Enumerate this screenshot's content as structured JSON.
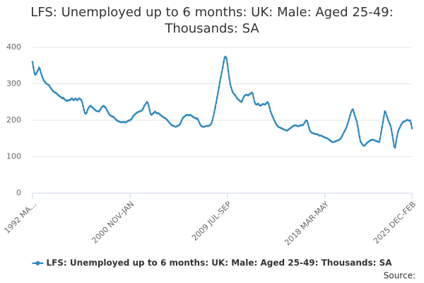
{
  "chart_data": {
    "type": "line",
    "title": "LFS: Unemployed up to 6 months: UK: Male: Aged 25-49: Thousands: SA",
    "source": "Source:",
    "categories": [
      "1992 MA...",
      null,
      null,
      null,
      null,
      null,
      null,
      null,
      null,
      null,
      null,
      null,
      null,
      null,
      null,
      null,
      null,
      null,
      null,
      null,
      null,
      null,
      null,
      null,
      null,
      null,
      null,
      null,
      null,
      null,
      null,
      null,
      null,
      null,
      null,
      null,
      null,
      null,
      null,
      null,
      null,
      null,
      null,
      null,
      null,
      null,
      null,
      null,
      null,
      null,
      null,
      null,
      null,
      null,
      null,
      null,
      null,
      null,
      null,
      null,
      null,
      null,
      null,
      null,
      null,
      null,
      null,
      null,
      null,
      null,
      null,
      null,
      null,
      null,
      null,
      null,
      null,
      null,
      null,
      null,
      null,
      null,
      null,
      null,
      null,
      null,
      null,
      null,
      null,
      null,
      null,
      null,
      null,
      null,
      null,
      null,
      null,
      null,
      null,
      null,
      null,
      null,
      null,
      null,
      "2000 NOV-JAN",
      null,
      null,
      null,
      null,
      null,
      null,
      null,
      null,
      null,
      null,
      null,
      null,
      null,
      null,
      null,
      null,
      null,
      null,
      null,
      null,
      null,
      null,
      null,
      null,
      null,
      null,
      null,
      null,
      null,
      null,
      null,
      null,
      null,
      null,
      null,
      null,
      null,
      null,
      null,
      null,
      null,
      null,
      null,
      null,
      null,
      null,
      null,
      null,
      null,
      null,
      null,
      null,
      null,
      null,
      null,
      null,
      null,
      null,
      null,
      null,
      null,
      null,
      null,
      null,
      null,
      null,
      null,
      null,
      null,
      null,
      null,
      null,
      null,
      null,
      null,
      null,
      null,
      null,
      null,
      null,
      null,
      null,
      null,
      null,
      null,
      null,
      null,
      null,
      null,
      null,
      null,
      null,
      null,
      null,
      null,
      null,
      null,
      null,
      null,
      null,
      null,
      null,
      null,
      "2009 JUL-SEP",
      null,
      null,
      null,
      null,
      null,
      null,
      null,
      null,
      null,
      null,
      null,
      null,
      null,
      null,
      null,
      null,
      null,
      null,
      null,
      null,
      null,
      null,
      null,
      null,
      null,
      null,
      null,
      null,
      null,
      null,
      null,
      null,
      null,
      null,
      null,
      null,
      null,
      null,
      null,
      null,
      null,
      null,
      null,
      null,
      null,
      null,
      null,
      null,
      null,
      null,
      null,
      null,
      null,
      null,
      null,
      null,
      null,
      null,
      null,
      null,
      null,
      null,
      null,
      null,
      null,
      null,
      null,
      null,
      null,
      null,
      null,
      null,
      null,
      null,
      null,
      null,
      null,
      null,
      null,
      null,
      null,
      null,
      null,
      null,
      null,
      null,
      null,
      null,
      null,
      null,
      null,
      null,
      null,
      null,
      null,
      null,
      null,
      null,
      null,
      null,
      null,
      null,
      null,
      "2018 MAR-MAY",
      null,
      null,
      null,
      null,
      null,
      null,
      null,
      null,
      null,
      null,
      null,
      null,
      null,
      null,
      null,
      null,
      null,
      null,
      null,
      null,
      null,
      null,
      null,
      null,
      null,
      null,
      null,
      null,
      null,
      null,
      null,
      null,
      null,
      null,
      null,
      null,
      null,
      null,
      null,
      null,
      null,
      null,
      null,
      null,
      null,
      null,
      null,
      null,
      null,
      null,
      null,
      null,
      null,
      null,
      null,
      null,
      null,
      null,
      null,
      null,
      null,
      null,
      null,
      null,
      null,
      null,
      null,
      null,
      null,
      null,
      null,
      null,
      null,
      null,
      null,
      null,
      null,
      null,
      null,
      null,
      null,
      null,
      null,
      null,
      null,
      null,
      null,
      null,
      null,
      null,
      null,
      null,
      "2025 DEC-FEB"
    ],
    "series": [
      {
        "name": "LFS: Unemployed up to 6 months: UK: Male: Aged 25-49: Thousands: SA",
        "color": "#2a87c0",
        "values": [
          360,
          345,
          330,
          325,
          328,
          333,
          338,
          345,
          340,
          330,
          322,
          315,
          310,
          306,
          303,
          300,
          299,
          297,
          295,
          290,
          287,
          283,
          280,
          278,
          276,
          275,
          273,
          270,
          268,
          266,
          265,
          262,
          260,
          262,
          258,
          256,
          255,
          253,
          254,
          256,
          255,
          258,
          260,
          257,
          255,
          258,
          260,
          257,
          255,
          259,
          260,
          258,
          256,
          250,
          240,
          228,
          220,
          218,
          222,
          230,
          235,
          238,
          240,
          237,
          235,
          233,
          230,
          228,
          226,
          225,
          225,
          224,
          228,
          232,
          236,
          238,
          240,
          237,
          235,
          230,
          225,
          220,
          216,
          214,
          212,
          210,
          210,
          208,
          205,
          202,
          200,
          198,
          197,
          196,
          195,
          194,
          195,
          196,
          195,
          194,
          195,
          197,
          198,
          200,
          200,
          202,
          205,
          210,
          213,
          215,
          218,
          220,
          222,
          223,
          224,
          225,
          226,
          228,
          232,
          238,
          242,
          246,
          250,
          248,
          240,
          228,
          218,
          215,
          217,
          220,
          222,
          224,
          221,
          219,
          220,
          218,
          216,
          214,
          212,
          210,
          208,
          206,
          205,
          203,
          200,
          197,
          194,
          191,
          188,
          186,
          185,
          184,
          183,
          182,
          184,
          185,
          186,
          188,
          192,
          198,
          204,
          208,
          210,
          212,
          214,
          215,
          214,
          213,
          215,
          214,
          212,
          210,
          208,
          207,
          206,
          204,
          205,
          200,
          194,
          188,
          185,
          183,
          182,
          182,
          183,
          184,
          185,
          184,
          185,
          186,
          188,
          192,
          200,
          210,
          222,
          235,
          248,
          262,
          276,
          290,
          305,
          318,
          332,
          345,
          360,
          372,
          375,
          370,
          355,
          335,
          315,
          300,
          290,
          282,
          276,
          272,
          270,
          266,
          262,
          258,
          256,
          254,
          252,
          250,
          255,
          262,
          266,
          269,
          270,
          270,
          268,
          270,
          272,
          274,
          276,
          273,
          262,
          250,
          245,
          243,
          244,
          246,
          242,
          240,
          241,
          243,
          245,
          244,
          243,
          245,
          248,
          250,
          245,
          235,
          225,
          218,
          212,
          206,
          200,
          195,
          190,
          186,
          183,
          181,
          180,
          179,
          178,
          176,
          175,
          174,
          173,
          172,
          172,
          174,
          176,
          178,
          180,
          182,
          184,
          185,
          186,
          186,
          185,
          184,
          184,
          185,
          186,
          187,
          186,
          188,
          192,
          196,
          200,
          198,
          190,
          180,
          172,
          168,
          166,
          165,
          164,
          163,
          162,
          162,
          162,
          160,
          158,
          158,
          158,
          157,
          155,
          154,
          153,
          152,
          151,
          150,
          148,
          146,
          144,
          142,
          140,
          140,
          141,
          142,
          143,
          144,
          145,
          146,
          148,
          150,
          155,
          160,
          165,
          170,
          175,
          180,
          188,
          196,
          205,
          214,
          222,
          228,
          230,
          222,
          212,
          205,
          198,
          185,
          170,
          155,
          142,
          138,
          134,
          131,
          130,
          132,
          135,
          138,
          140,
          142,
          144,
          145,
          146,
          147,
          146,
          145,
          144,
          143,
          142,
          141,
          140,
          150,
          165,
          180,
          195,
          210,
          225,
          220,
          212,
          205,
          198,
          192,
          186,
          175,
          160,
          145,
          128,
          125,
          140,
          155,
          168,
          175,
          180,
          186,
          190,
          194,
          196,
          197,
          198,
          200,
          201,
          200,
          199,
          200,
          192,
          178
        ]
      }
    ],
    "ylim": [
      0,
      400
    ],
    "yticks": [
      0,
      100,
      200,
      300,
      400
    ],
    "grid": true,
    "legend": "bottom"
  }
}
